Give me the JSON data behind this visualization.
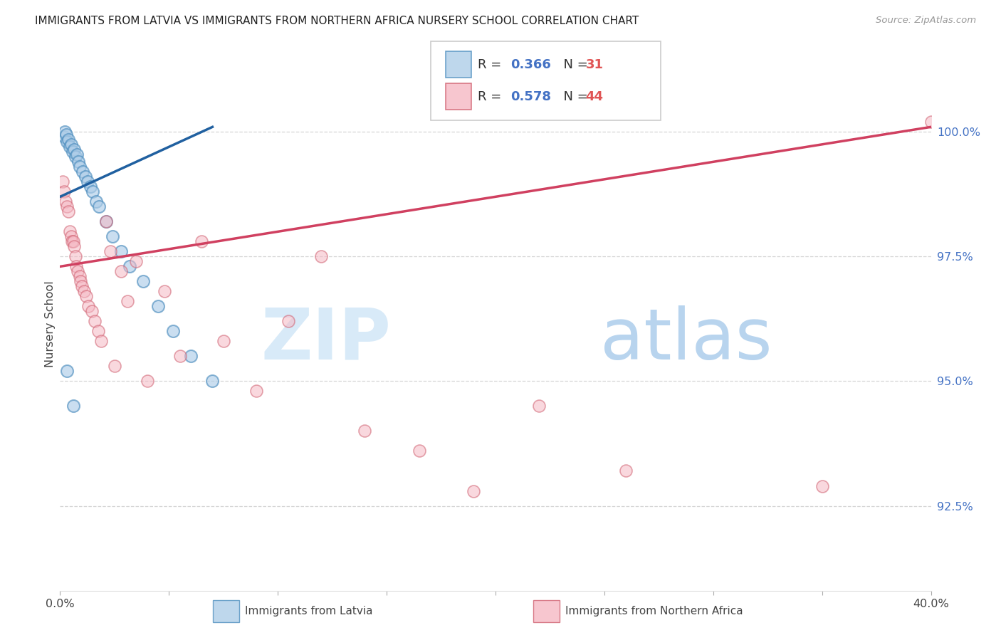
{
  "title": "IMMIGRANTS FROM LATVIA VS IMMIGRANTS FROM NORTHERN AFRICA NURSERY SCHOOL CORRELATION CHART",
  "source": "Source: ZipAtlas.com",
  "ylabel": "Nursery School",
  "ytick_values": [
    92.5,
    95.0,
    97.5,
    100.0
  ],
  "ytick_labels": [
    "92.5%",
    "95.0%",
    "97.5%",
    "100.0%"
  ],
  "xlim": [
    0.0,
    40.0
  ],
  "ylim": [
    90.8,
    101.5
  ],
  "legend_blue_r": "0.366",
  "legend_blue_n": "31",
  "legend_pink_r": "0.578",
  "legend_pink_n": "44",
  "blue_fill": "#aecde8",
  "blue_edge": "#4f8fbf",
  "blue_line": "#2060a0",
  "pink_fill": "#f5b8c4",
  "pink_edge": "#d06070",
  "pink_line": "#d04060",
  "r_color": "#4472c4",
  "n_color": "#e05555",
  "watermark_zip_color": "#d8eaf8",
  "watermark_atlas_color": "#b8d4ee",
  "blue_x": [
    0.18,
    0.22,
    0.28,
    0.32,
    0.38,
    0.45,
    0.52,
    0.58,
    0.65,
    0.72,
    0.78,
    0.85,
    0.92,
    1.05,
    1.15,
    1.25,
    1.38,
    1.5,
    1.65,
    1.8,
    2.1,
    2.4,
    2.8,
    3.2,
    3.8,
    4.5,
    5.2,
    6.0,
    7.0,
    0.3,
    0.6
  ],
  "blue_y": [
    99.9,
    100.0,
    99.95,
    99.8,
    99.85,
    99.7,
    99.75,
    99.6,
    99.65,
    99.5,
    99.55,
    99.4,
    99.3,
    99.2,
    99.1,
    99.0,
    98.9,
    98.8,
    98.6,
    98.5,
    98.2,
    97.9,
    97.6,
    97.3,
    97.0,
    96.5,
    96.0,
    95.5,
    95.0,
    95.2,
    94.5
  ],
  "pink_x": [
    0.12,
    0.18,
    0.25,
    0.3,
    0.38,
    0.45,
    0.5,
    0.55,
    0.6,
    0.65,
    0.7,
    0.75,
    0.82,
    0.9,
    0.95,
    1.0,
    1.1,
    1.2,
    1.3,
    1.45,
    1.6,
    1.75,
    1.9,
    2.1,
    2.3,
    2.5,
    2.8,
    3.1,
    3.5,
    4.0,
    4.8,
    5.5,
    6.5,
    7.5,
    9.0,
    10.5,
    12.0,
    14.0,
    16.5,
    19.0,
    22.0,
    26.0,
    35.0,
    40.0
  ],
  "pink_y": [
    99.0,
    98.8,
    98.6,
    98.5,
    98.4,
    98.0,
    97.9,
    97.8,
    97.8,
    97.7,
    97.5,
    97.3,
    97.2,
    97.1,
    97.0,
    96.9,
    96.8,
    96.7,
    96.5,
    96.4,
    96.2,
    96.0,
    95.8,
    98.2,
    97.6,
    95.3,
    97.2,
    96.6,
    97.4,
    95.0,
    96.8,
    95.5,
    97.8,
    95.8,
    94.8,
    96.2,
    97.5,
    94.0,
    93.6,
    92.8,
    94.5,
    93.2,
    92.9,
    100.2
  ]
}
